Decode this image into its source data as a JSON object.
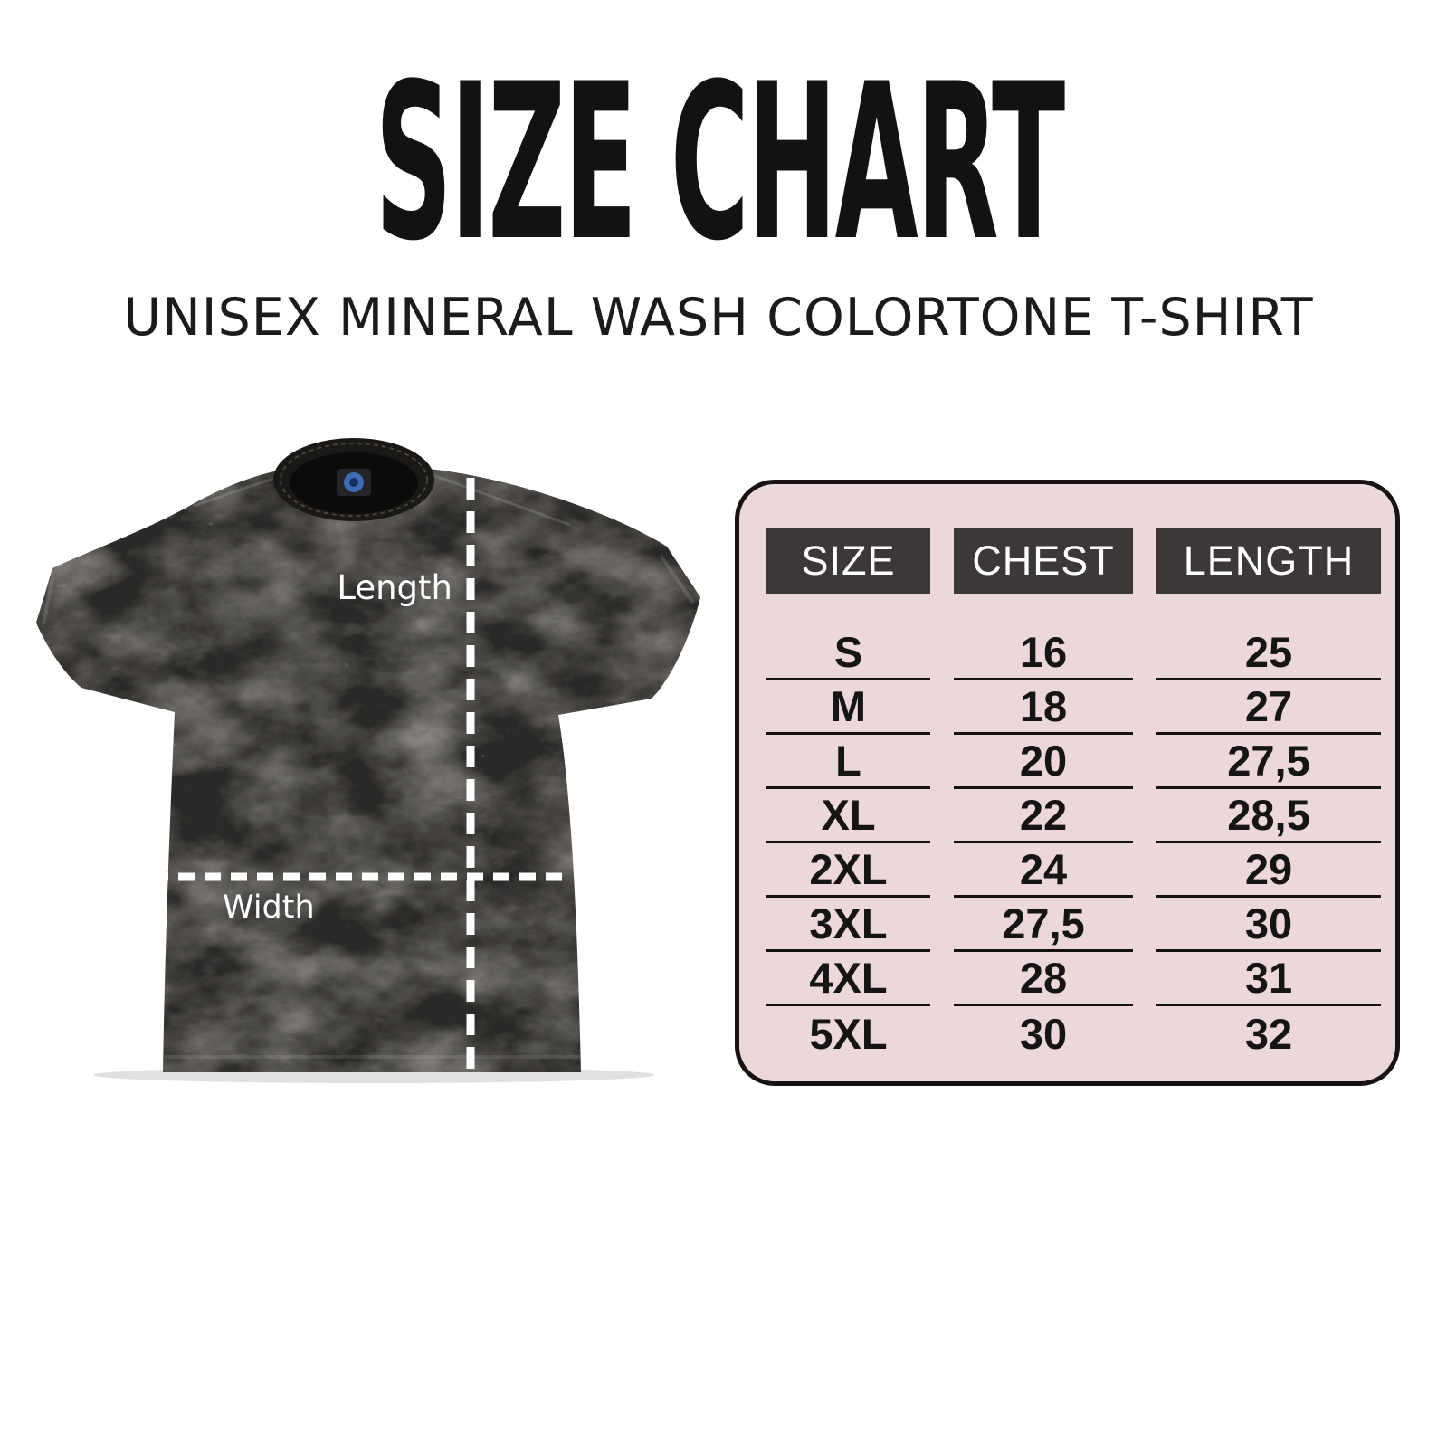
{
  "header": {
    "title": "SIZE CHART",
    "subtitle": "UNISEX MINERAL WASH COLORTONE T-SHIRT"
  },
  "diagram": {
    "product": "black mineral wash t-shirt",
    "length_label": "Length",
    "width_label": "Width"
  },
  "size_table": {
    "columns": [
      "SIZE",
      "CHEST",
      "LENGTH"
    ],
    "rows": [
      [
        "S",
        "16",
        "25"
      ],
      [
        "M",
        "18",
        "27"
      ],
      [
        "L",
        "20",
        "27,5"
      ],
      [
        "XL",
        "22",
        "28,5"
      ],
      [
        "2XL",
        "24",
        "29"
      ],
      [
        "3XL",
        "27,5",
        "30"
      ],
      [
        "4XL",
        "28",
        "31"
      ],
      [
        "5XL",
        "30",
        "32"
      ]
    ]
  },
  "chart_data": {
    "type": "table",
    "title": "SIZE CHART",
    "subtitle": "UNISEX MINERAL WASH COLORTONE T-SHIRT",
    "columns": [
      "SIZE",
      "CHEST",
      "LENGTH"
    ],
    "rows": [
      {
        "size": "S",
        "chest": 16,
        "length": 25
      },
      {
        "size": "M",
        "chest": 18,
        "length": 27
      },
      {
        "size": "L",
        "chest": 20,
        "length": 27.5
      },
      {
        "size": "XL",
        "chest": 22,
        "length": 28.5
      },
      {
        "size": "2XL",
        "chest": 24,
        "length": 29
      },
      {
        "size": "3XL",
        "chest": 27.5,
        "length": 30
      },
      {
        "size": "4XL",
        "chest": 28,
        "length": 31
      },
      {
        "size": "5XL",
        "chest": 30,
        "length": 32
      }
    ],
    "units": "inches (decimal comma used on chart)"
  },
  "colors": {
    "background": "#ffffff",
    "text": "#141112",
    "table_panel": "#ecd7db",
    "table_header_bg": "#3b3837",
    "table_header_text": "#ffffff",
    "table_border": "#171213",
    "shirt_base": "#2b2927",
    "measure_line": "#ffffff"
  }
}
